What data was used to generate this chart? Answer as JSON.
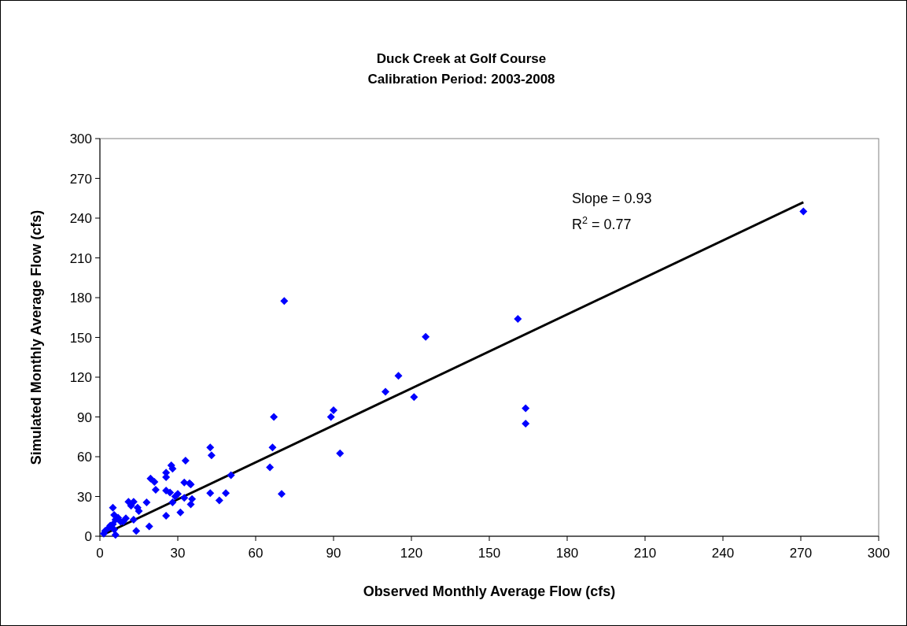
{
  "chart_data": {
    "type": "scatter",
    "title": "Duck Creek at Golf Course",
    "subtitle": "Calibration Period:  2003-2008",
    "xlabel": "Observed Monthly Average Flow (cfs)",
    "ylabel": "Simulated Monthly Average Flow (cfs)",
    "xlim": [
      0,
      300
    ],
    "ylim": [
      0,
      300
    ],
    "xticks": [
      0,
      30,
      60,
      90,
      120,
      150,
      180,
      210,
      240,
      270,
      300
    ],
    "yticks": [
      0,
      30,
      60,
      90,
      120,
      150,
      180,
      210,
      240,
      270,
      300
    ],
    "grid": false,
    "annotations": [
      "Slope = 0.93",
      "R$^{2}$ = 0.77"
    ],
    "series": [
      {
        "color": "#0000ff",
        "marker": "diamond",
        "x": [
          271,
          161,
          125.5,
          71,
          115,
          110,
          121,
          164,
          164,
          90,
          89,
          92.5,
          67,
          66.5,
          65.5,
          70,
          50.5,
          48.5,
          46,
          42.5,
          43,
          42.5,
          33,
          34.5,
          35,
          32.5,
          32.5,
          35.5,
          35,
          31,
          25.5,
          25.5,
          27.5,
          28,
          25.5,
          25.5,
          27,
          29,
          30,
          28,
          19.5,
          21,
          21.5,
          18,
          19,
          13,
          12,
          11,
          14.5,
          15,
          13,
          14,
          10,
          7,
          5.5,
          6,
          8,
          5,
          4,
          5.5,
          6,
          2,
          1.5,
          5,
          3.5,
          9
        ],
        "values": [
          245,
          164,
          150.5,
          177.5,
          121,
          109,
          105,
          96.5,
          85,
          95,
          90,
          62.5,
          90,
          67,
          52,
          32,
          46,
          32.5,
          27,
          67,
          61,
          32.5,
          57,
          40,
          39,
          40.5,
          29,
          28,
          24,
          18,
          15.5,
          48,
          53.5,
          51,
          44.5,
          34.5,
          33,
          30,
          32,
          25.5,
          43.5,
          41,
          35,
          25.5,
          7.5,
          26,
          23,
          26,
          21.5,
          19,
          12.5,
          4,
          13.5,
          14,
          16,
          12.5,
          11,
          9,
          8,
          5,
          1,
          4,
          2,
          21.5,
          6.5,
          11
        ]
      },
      {
        "type": "line",
        "color": "#000000",
        "marker": "none",
        "line_style": "solid",
        "x": [
          1,
          271
        ],
        "values": [
          0.9,
          252
        ]
      }
    ]
  }
}
